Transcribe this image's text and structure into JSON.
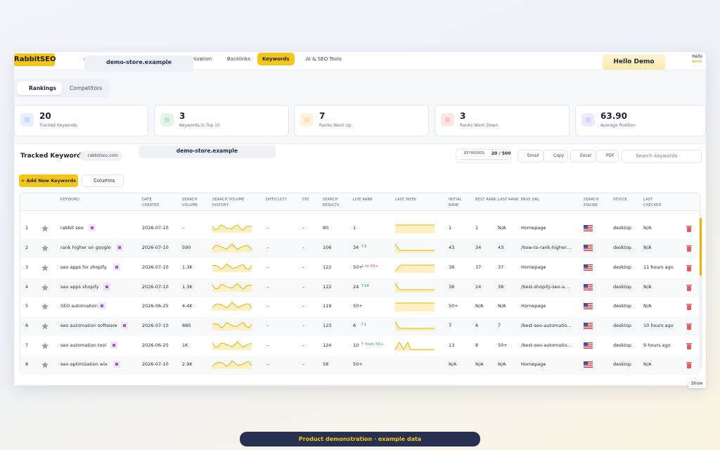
{
  "nav": {
    "logo": "RabbitSEO",
    "items": [
      "ra",
      "imization",
      "Backlinks",
      "Keywords",
      "AI & SEO Tools"
    ],
    "active": 3,
    "store_overlay": "demo-store.example",
    "user_badge": "Hello Demo",
    "user_greeting": "Hello",
    "user_name": "demo"
  },
  "tabs": {
    "items": [
      "Rankings",
      "Competitors"
    ],
    "active": 0
  },
  "stats": [
    {
      "value": 20,
      "label": "Tracked Keywords"
    },
    {
      "value": 3,
      "label": "Keywords in Top 10"
    },
    {
      "value": 7,
      "label": "Ranks Went Up"
    },
    {
      "value": 3,
      "label": "Ranks Went Down"
    },
    {
      "value": "63.90",
      "label": "Average Position"
    }
  ],
  "panel": {
    "title": "Tracked Keywords",
    "domain": "rabbitseo.com",
    "store_overlay": "demo-store.example",
    "quota_label": "KEYWORDS",
    "quota": "20 / 500",
    "actions": [
      "Email",
      "Copy",
      "Excel",
      "PDF"
    ],
    "search_placeholder": "Search keywords",
    "add_button": "+ Add New Keywords",
    "columns_button": "Columns"
  },
  "table": {
    "headers": [
      "KEYWORD",
      "DATE CREATED",
      "SEARCH VOLUME",
      "SEARCH VOLUME HISTORY",
      "DIFFICULTY",
      "CPC",
      "SEARCH RESULTS",
      "LIVE RANK",
      "LAST WEEK",
      "INITIAL RANK",
      "BEST RANK",
      "LAST RANK",
      "PAGE URL",
      "SEARCH ENGINE",
      "DEVICE",
      "LAST CHECKED"
    ],
    "rows": [
      {
        "n": 1,
        "keyword": "rabbit seo",
        "date": "2026-07-10",
        "volume": "–",
        "difficulty": "–",
        "cpc": "–",
        "results": 80,
        "live": 1,
        "initial": 1,
        "best": 1,
        "last": "N/A",
        "url": "Homepage",
        "device": "desktop",
        "checked": "N/A"
      },
      {
        "n": 2,
        "keyword": "rank higher on google",
        "date": "2026-07-10",
        "volume": 590,
        "difficulty": "–",
        "cpc": "–",
        "results": 106,
        "live": 34,
        "change": "↑9",
        "trend": "up",
        "initial": 43,
        "best": 34,
        "last": 43,
        "url": "/how-to-rank-higher...",
        "device": "desktop",
        "checked": "N/A"
      },
      {
        "n": 3,
        "keyword": "seo apps for shopify",
        "date": "2026-07-10",
        "volume": "1.3K",
        "difficulty": "–",
        "cpc": "–",
        "results": 122,
        "live": "50+",
        "change": "↓ to 50+",
        "trend": "down",
        "initial": 38,
        "best": 37,
        "last": 37,
        "url": "Homepage",
        "device": "desktop",
        "checked": "11 hours ago"
      },
      {
        "n": 4,
        "keyword": "seo apps shopify",
        "date": "2026-07-10",
        "volume": "1.3K",
        "difficulty": "–",
        "cpc": "–",
        "results": 122,
        "live": 24,
        "change": "↑14",
        "trend": "up",
        "initial": 38,
        "best": 24,
        "last": 38,
        "url": "/best-shopify-seo-a...",
        "device": "desktop",
        "checked": "N/A"
      },
      {
        "n": 5,
        "keyword": "SEO automation",
        "date": "2026-06-25",
        "volume": "4.4K",
        "difficulty": "–",
        "cpc": "–",
        "results": 119,
        "live": "50+",
        "initial": "50+",
        "best": "N/A",
        "last": "N/A",
        "url": "Homepage",
        "device": "desktop",
        "checked": "N/A"
      },
      {
        "n": 6,
        "keyword": "seo automation software",
        "date": "2026-07-10",
        "volume": 880,
        "difficulty": "–",
        "cpc": "–",
        "results": 123,
        "live": 6,
        "change": "↑1",
        "trend": "up",
        "initial": 7,
        "best": 6,
        "last": 7,
        "url": "/best-seo-automatio...",
        "device": "desktop",
        "checked": "10 hours ago"
      },
      {
        "n": 7,
        "keyword": "seo automation tool",
        "date": "2026-06-25",
        "volume": "1K",
        "difficulty": "–",
        "cpc": "–",
        "results": 124,
        "live": 10,
        "change": "↑ from 50+",
        "trend": "up",
        "initial": 13,
        "best": 8,
        "last": "50+",
        "url": "/best-seo-automatio...",
        "device": "desktop",
        "checked": "9 hours ago"
      },
      {
        "n": 8,
        "keyword": "seo optimization wix",
        "date": "2026-07-10",
        "volume": "2.9K",
        "difficulty": "–",
        "cpc": "–",
        "results": 58,
        "live": "50+",
        "initial": "N/A",
        "best": "N/A",
        "last": "N/A",
        "url": "Homepage",
        "device": "desktop",
        "checked": "N/A"
      }
    ]
  },
  "footer": {
    "show": "Show",
    "caption": "Product demonstration · example data"
  }
}
